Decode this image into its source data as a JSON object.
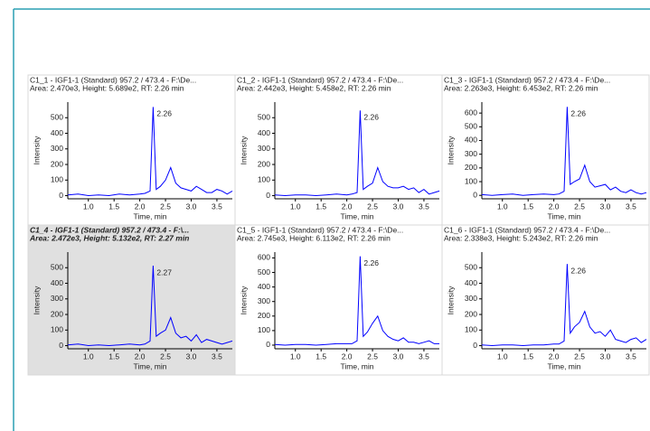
{
  "chart_data": [
    {
      "type": "line",
      "title": "C1_1 - IGF1-1 (Standard) 957.2 / 473.4 - F:\\De...",
      "subtitle": "Area: 2.470e3, Height: 5.689e2, RT: 2.26 min",
      "x_label": "Time, min",
      "y_label": "Intensity",
      "annotation": "2.26",
      "selected": false,
      "color": "#0000ff",
      "x": [
        0.6,
        0.8,
        1.0,
        1.2,
        1.4,
        1.6,
        1.8,
        2.0,
        2.1,
        2.2,
        2.26,
        2.32,
        2.4,
        2.5,
        2.6,
        2.7,
        2.8,
        2.9,
        3.0,
        3.1,
        3.2,
        3.3,
        3.4,
        3.5,
        3.6,
        3.7,
        3.8
      ],
      "values": [
        5,
        10,
        0,
        5,
        0,
        10,
        5,
        10,
        15,
        30,
        569,
        40,
        60,
        100,
        180,
        80,
        50,
        40,
        30,
        60,
        40,
        20,
        20,
        40,
        30,
        10,
        30
      ],
      "xlim": [
        0.6,
        3.8
      ],
      "ylim": [
        -20,
        600
      ],
      "xticks": [
        {
          "value": 1,
          "label": "1.0"
        },
        1.5,
        {
          "value": 2,
          "label": "2.0"
        },
        2.5,
        {
          "value": 3,
          "label": "3.0"
        },
        3.5
      ],
      "yticks": [
        0,
        100,
        200,
        300,
        400,
        500
      ]
    },
    {
      "type": "line",
      "title": "C1_2 - IGF1-1 (Standard) 957.2 / 473.4 - F:\\De...",
      "subtitle": "Area: 2.442e3, Height: 5.458e2, RT: 2.26 min",
      "x_label": "Time, min",
      "y_label": "Intensity",
      "annotation": "2.26",
      "selected": false,
      "color": "#0000ff",
      "x": [
        0.6,
        0.8,
        1.0,
        1.2,
        1.4,
        1.6,
        1.8,
        2.0,
        2.1,
        2.2,
        2.26,
        2.32,
        2.4,
        2.5,
        2.6,
        2.7,
        2.8,
        2.9,
        3.0,
        3.1,
        3.2,
        3.3,
        3.4,
        3.5,
        3.6,
        3.7,
        3.8
      ],
      "values": [
        5,
        0,
        5,
        5,
        0,
        5,
        10,
        5,
        10,
        20,
        546,
        40,
        60,
        80,
        180,
        90,
        60,
        50,
        50,
        60,
        40,
        50,
        20,
        40,
        10,
        20,
        30
      ],
      "xlim": [
        0.6,
        3.8
      ],
      "ylim": [
        -20,
        600
      ],
      "xticks": [
        {
          "value": 1,
          "label": "1.0"
        },
        1.5,
        {
          "value": 2,
          "label": "2.0"
        },
        2.5,
        {
          "value": 3,
          "label": "3.0"
        },
        3.5
      ],
      "yticks": [
        0,
        100,
        200,
        300,
        400,
        500
      ]
    },
    {
      "type": "line",
      "title": "C1_3 - IGF1-1 (Standard) 957.2 / 473.4 - F:\\De...",
      "subtitle": "Area: 2.263e3, Height: 6.453e2, RT: 2.26 min",
      "x_label": "Time, min",
      "y_label": "Intensity",
      "annotation": "2.26",
      "selected": false,
      "color": "#0000ff",
      "x": [
        0.6,
        0.8,
        1.0,
        1.2,
        1.4,
        1.6,
        1.8,
        2.0,
        2.1,
        2.2,
        2.26,
        2.32,
        2.4,
        2.5,
        2.6,
        2.7,
        2.8,
        2.9,
        3.0,
        3.1,
        3.2,
        3.3,
        3.4,
        3.5,
        3.6,
        3.7,
        3.8
      ],
      "values": [
        5,
        0,
        5,
        10,
        0,
        5,
        10,
        5,
        10,
        30,
        645,
        80,
        100,
        120,
        220,
        100,
        60,
        70,
        80,
        40,
        60,
        30,
        20,
        40,
        20,
        10,
        20
      ],
      "xlim": [
        0.6,
        3.8
      ],
      "ylim": [
        -25,
        680
      ],
      "xticks": [
        {
          "value": 1,
          "label": "1.0"
        },
        1.5,
        {
          "value": 2,
          "label": "2.0"
        },
        2.5,
        {
          "value": 3,
          "label": "3.0"
        },
        3.5
      ],
      "yticks": [
        0,
        100,
        200,
        300,
        400,
        500,
        600
      ]
    },
    {
      "type": "line",
      "title": "C1_4 - IGF1-1 (Standard) 957.2 / 473.4 - F:\\...",
      "subtitle": "Area: 2.472e3, Height: 5.132e2, RT: 2.27 min",
      "x_label": "Time, min",
      "y_label": "Intensity",
      "annotation": "2.27",
      "selected": true,
      "color": "#0000ff",
      "x": [
        0.6,
        0.8,
        1.0,
        1.2,
        1.4,
        1.6,
        1.8,
        2.0,
        2.1,
        2.2,
        2.26,
        2.32,
        2.4,
        2.5,
        2.6,
        2.7,
        2.8,
        2.9,
        3.0,
        3.1,
        3.2,
        3.3,
        3.4,
        3.5,
        3.6,
        3.7,
        3.8
      ],
      "values": [
        5,
        10,
        0,
        5,
        0,
        5,
        10,
        5,
        10,
        30,
        513,
        60,
        80,
        100,
        180,
        80,
        50,
        60,
        30,
        70,
        20,
        40,
        30,
        20,
        10,
        20,
        30
      ],
      "xlim": [
        0.6,
        3.8
      ],
      "ylim": [
        -20,
        600
      ],
      "xticks": [
        {
          "value": 1,
          "label": "1.0"
        },
        1.5,
        {
          "value": 2,
          "label": "2.0"
        },
        2.5,
        {
          "value": 3,
          "label": "3.0"
        },
        3.5
      ],
      "yticks": [
        0,
        100,
        200,
        300,
        400,
        500
      ]
    },
    {
      "type": "line",
      "title": "C1_5 - IGF1-1 (Standard) 957.2 / 473.4 - F:\\De...",
      "subtitle": "Area: 2.745e3, Height: 6.113e2, RT: 2.26 min",
      "x_label": "Time, min",
      "y_label": "Intensity",
      "annotation": "2.26",
      "selected": false,
      "color": "#0000ff",
      "x": [
        0.6,
        0.8,
        1.0,
        1.2,
        1.4,
        1.6,
        1.8,
        2.0,
        2.1,
        2.2,
        2.26,
        2.32,
        2.4,
        2.5,
        2.6,
        2.7,
        2.8,
        2.9,
        3.0,
        3.1,
        3.2,
        3.3,
        3.4,
        3.5,
        3.6,
        3.7,
        3.8
      ],
      "values": [
        5,
        0,
        5,
        5,
        0,
        5,
        10,
        10,
        10,
        30,
        611,
        60,
        90,
        150,
        200,
        100,
        60,
        40,
        30,
        50,
        20,
        20,
        10,
        20,
        30,
        10,
        10
      ],
      "xlim": [
        0.6,
        3.8
      ],
      "ylim": [
        -25,
        640
      ],
      "xticks": [
        {
          "value": 1,
          "label": "1.0"
        },
        1.5,
        {
          "value": 2,
          "label": "2.0"
        },
        2.5,
        {
          "value": 3,
          "label": "3.0"
        },
        3.5
      ],
      "yticks": [
        0,
        100,
        200,
        300,
        400,
        500,
        600
      ]
    },
    {
      "type": "line",
      "title": "C1_6 - IGF1-1 (Standard) 957.2 / 473.4 - F:\\De...",
      "subtitle": "Area: 2.338e3, Height: 5.243e2, RT: 2.26 min",
      "x_label": "Time, min",
      "y_label": "Intensity",
      "annotation": "2.26",
      "selected": false,
      "color": "#0000ff",
      "x": [
        0.6,
        0.8,
        1.0,
        1.2,
        1.4,
        1.6,
        1.8,
        2.0,
        2.1,
        2.2,
        2.26,
        2.32,
        2.4,
        2.5,
        2.6,
        2.7,
        2.8,
        2.9,
        3.0,
        3.1,
        3.2,
        3.3,
        3.4,
        3.5,
        3.6,
        3.7,
        3.8
      ],
      "values": [
        5,
        0,
        5,
        5,
        0,
        5,
        5,
        10,
        10,
        30,
        524,
        80,
        120,
        150,
        220,
        120,
        80,
        90,
        60,
        100,
        40,
        30,
        20,
        40,
        50,
        20,
        40
      ],
      "xlim": [
        0.6,
        3.8
      ],
      "ylim": [
        -20,
        600
      ],
      "xticks": [
        {
          "value": 1,
          "label": "1.0"
        },
        1.5,
        {
          "value": 2,
          "label": "2.0"
        },
        2.5,
        {
          "value": 3,
          "label": "3.0"
        },
        3.5
      ],
      "yticks": [
        0,
        100,
        200,
        300,
        400,
        500
      ]
    }
  ]
}
